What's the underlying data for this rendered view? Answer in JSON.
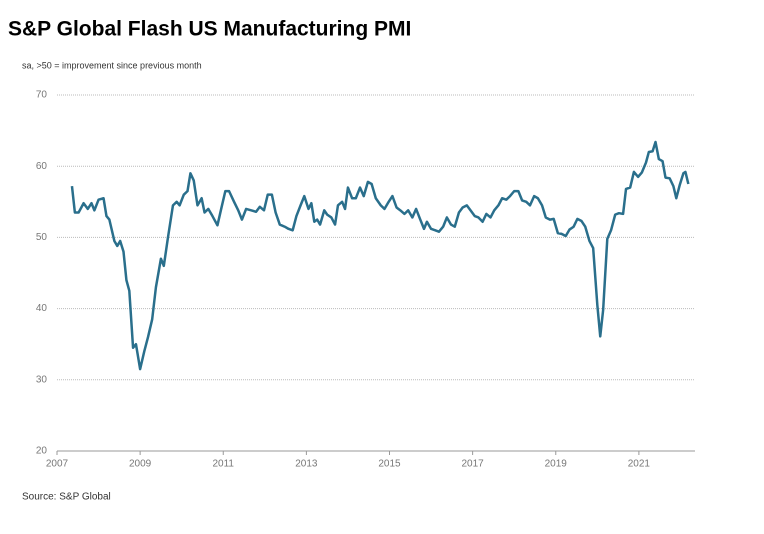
{
  "chart_data": {
    "type": "line",
    "title": "S&P Global Flash US Manufacturing PMI",
    "subtitle": "sa, >50 = improvement  since previous month",
    "source": "Source: S&P Global",
    "color": "#2a6f8c",
    "grid": true,
    "xlim": [
      2007,
      2022.35
    ],
    "xticks": [
      2007,
      2009,
      2011,
      2013,
      2015,
      2017,
      2019,
      2021
    ],
    "ylim": [
      20,
      70
    ],
    "yticks": [
      20,
      30,
      40,
      50,
      60,
      70
    ],
    "x": [
      2007.36,
      2007.43,
      2007.52,
      2007.64,
      2007.74,
      2007.83,
      2007.9,
      2008.0,
      2008.12,
      2008.19,
      2008.26,
      2008.38,
      2008.45,
      2008.52,
      2008.6,
      2008.67,
      2008.74,
      2008.83,
      2008.9,
      2009.0,
      2009.1,
      2009.19,
      2009.29,
      2009.38,
      2009.5,
      2009.57,
      2009.67,
      2009.79,
      2009.88,
      2009.95,
      2010.05,
      2010.14,
      2010.21,
      2010.29,
      2010.38,
      2010.48,
      2010.55,
      2010.64,
      2010.74,
      2010.86,
      2010.95,
      2011.05,
      2011.14,
      2011.26,
      2011.36,
      2011.45,
      2011.55,
      2011.67,
      2011.79,
      2011.88,
      2011.98,
      2012.07,
      2012.17,
      2012.26,
      2012.36,
      2012.48,
      2012.57,
      2012.67,
      2012.76,
      2012.86,
      2012.95,
      2013.05,
      2013.12,
      2013.19,
      2013.26,
      2013.33,
      2013.43,
      2013.5,
      2013.6,
      2013.69,
      2013.76,
      2013.86,
      2013.93,
      2014.0,
      2014.1,
      2014.19,
      2014.29,
      2014.38,
      2014.48,
      2014.57,
      2014.67,
      2014.79,
      2014.88,
      2014.98,
      2015.07,
      2015.17,
      2015.26,
      2015.36,
      2015.45,
      2015.55,
      2015.64,
      2015.74,
      2015.83,
      2015.9,
      2016.0,
      2016.1,
      2016.19,
      2016.29,
      2016.38,
      2016.48,
      2016.57,
      2016.67,
      2016.76,
      2016.86,
      2016.95,
      2017.05,
      2017.14,
      2017.24,
      2017.33,
      2017.43,
      2017.52,
      2017.62,
      2017.71,
      2017.81,
      2017.9,
      2018.0,
      2018.1,
      2018.19,
      2018.29,
      2018.38,
      2018.48,
      2018.57,
      2018.67,
      2018.76,
      2018.86,
      2018.95,
      2019.05,
      2019.14,
      2019.24,
      2019.33,
      2019.43,
      2019.52,
      2019.62,
      2019.71,
      2019.81,
      2019.9,
      2020.0,
      2020.07,
      2020.14,
      2020.24,
      2020.33,
      2020.43,
      2020.52,
      2020.62,
      2020.69,
      2020.79,
      2020.88,
      2020.98,
      2021.07,
      2021.17,
      2021.24,
      2021.33,
      2021.4,
      2021.48,
      2021.57,
      2021.64,
      2021.74,
      2021.83,
      2021.9,
      2021.98,
      2022.07,
      2022.12,
      2022.19
    ],
    "values": [
      57.2,
      53.5,
      53.5,
      54.8,
      54,
      54.8,
      53.8,
      55.3,
      55.5,
      53,
      52.5,
      49.5,
      48.8,
      49.5,
      48,
      44,
      42.5,
      34.5,
      35,
      31.5,
      34,
      36,
      38.5,
      43,
      47,
      46,
      50,
      54.5,
      55,
      54.5,
      56,
      56.5,
      59,
      58,
      54.5,
      55.5,
      53.5,
      54,
      53,
      51.7,
      54,
      56.5,
      56.5,
      55,
      53.8,
      52.5,
      54,
      53.8,
      53.6,
      54.3,
      53.8,
      56,
      56,
      53.5,
      51.8,
      51.5,
      51.2,
      51,
      53,
      54.5,
      55.8,
      54,
      54.8,
      52.2,
      52.5,
      51.8,
      53.8,
      53.2,
      52.8,
      51.8,
      54.5,
      55,
      54,
      57,
      55.5,
      55.5,
      57,
      55.8,
      57.8,
      57.5,
      55.5,
      54.5,
      54,
      55,
      55.8,
      54.2,
      53.8,
      53.3,
      53.8,
      52.8,
      54,
      52.5,
      51.2,
      52.2,
      51.2,
      51,
      50.8,
      51.5,
      52.8,
      51.8,
      51.5,
      53.5,
      54.2,
      54.5,
      53.8,
      53,
      52.8,
      52.2,
      53.3,
      52.8,
      53.8,
      54.5,
      55.5,
      55.3,
      55.8,
      56.5,
      56.5,
      55.2,
      55,
      54.5,
      55.8,
      55.5,
      54.5,
      52.8,
      52.5,
      52.6,
      50.6,
      50.5,
      50.2,
      51.1,
      51.5,
      52.6,
      52.3,
      51.5,
      49.5,
      48.5,
      40.5,
      36.1,
      39.8,
      49.8,
      51,
      53.2,
      53.4,
      53.3,
      56.8,
      57,
      59.2,
      58.5,
      59.1,
      60.5,
      62,
      62.1,
      63.4,
      61,
      60.7,
      58.4,
      58.3,
      57.2,
      55.5,
      57.3,
      59,
      59.2,
      57.5
    ]
  }
}
